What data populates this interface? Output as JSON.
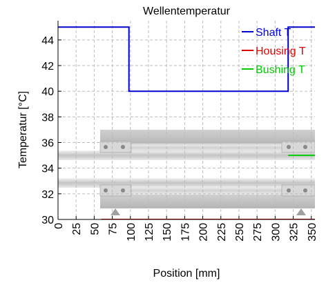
{
  "chart_data": {
    "type": "line",
    "title": "Wellentemperatur",
    "xlabel": "Position [mm]",
    "ylabel": "Temperatur [°C]",
    "xlim": [
      0,
      355
    ],
    "ylim": [
      30,
      45.5
    ],
    "grid": true,
    "legend_position": "top-right",
    "x_ticks": [
      "0",
      "25",
      "50",
      "75",
      "100",
      "125",
      "150",
      "175",
      "200",
      "225",
      "250",
      "275",
      "300",
      "325",
      "350"
    ],
    "y_ticks": [
      "30",
      "32",
      "34",
      "36",
      "38",
      "40",
      "42",
      "44"
    ],
    "series": [
      {
        "name": "Shaft T",
        "color": "#0000cc",
        "points": [
          [
            0,
            45
          ],
          [
            98,
            45
          ],
          [
            98,
            40
          ],
          [
            318,
            40
          ],
          [
            318,
            45
          ],
          [
            355,
            45
          ]
        ]
      },
      {
        "name": "Housing T",
        "color": "#dd0000",
        "points": [
          [
            60,
            30
          ],
          [
            355,
            30
          ]
        ]
      },
      {
        "name": "Bushing T",
        "color": "#00cc00",
        "points": [
          [
            318,
            35
          ],
          [
            355,
            35
          ]
        ]
      }
    ],
    "background_icon": "shaft-assembly-drawing"
  }
}
